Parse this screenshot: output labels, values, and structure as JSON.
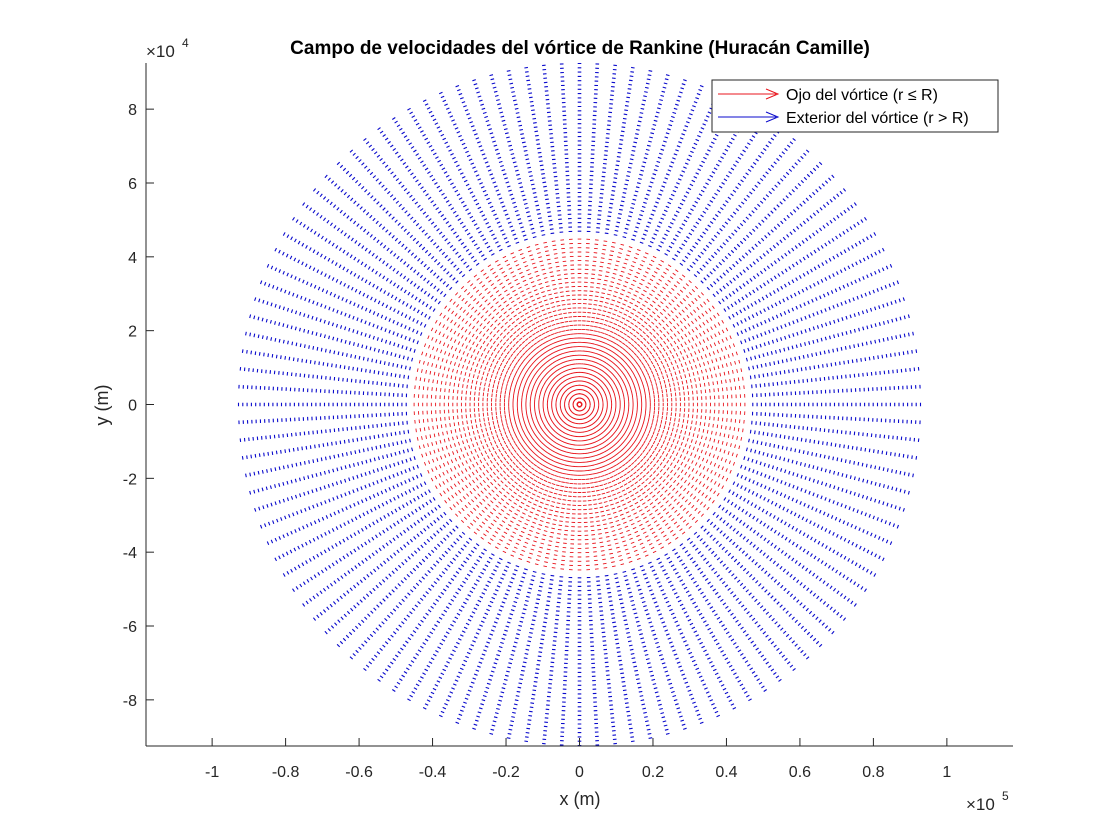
{
  "chart_data": {
    "type": "quiver",
    "title": "Campo de velocidades del vórtice de Rankine (Huracán Camille)",
    "xlabel": "x (m)",
    "ylabel": "y (m)",
    "x_exponent_base": "×10",
    "x_exponent_power": "5",
    "y_exponent_base": "×10",
    "y_exponent_power": "4",
    "xlim": [
      -118000,
      118000
    ],
    "ylim": [
      -92500,
      92500
    ],
    "xticks": [
      -100000,
      -80000,
      -60000,
      -40000,
      -20000,
      0,
      20000,
      40000,
      60000,
      80000,
      100000
    ],
    "xtick_labels": [
      "-1",
      "-0.8",
      "-0.6",
      "-0.4",
      "-0.2",
      "0",
      "0.2",
      "0.4",
      "0.6",
      "0.8",
      "1"
    ],
    "yticks": [
      -80000,
      -60000,
      -40000,
      -20000,
      0,
      20000,
      40000,
      60000,
      80000
    ],
    "ytick_labels": [
      "-8",
      "-6",
      "-4",
      "-2",
      "0",
      "2",
      "4",
      "6",
      "8"
    ],
    "grid": false,
    "legend_position": "top-right",
    "core_radius_m": 46000,
    "outer_radius_m": 93000,
    "radial_spokes": 120,
    "series": [
      {
        "name": "Ojo del vórtice (r ≤ R)",
        "color": "#e8141c",
        "region": "r <= R",
        "profile": "solid-body rotation"
      },
      {
        "name": "Exterior del vórtice (r > R)",
        "color": "#0a0acc",
        "region": "r > R",
        "profile": "irrotational"
      }
    ]
  }
}
